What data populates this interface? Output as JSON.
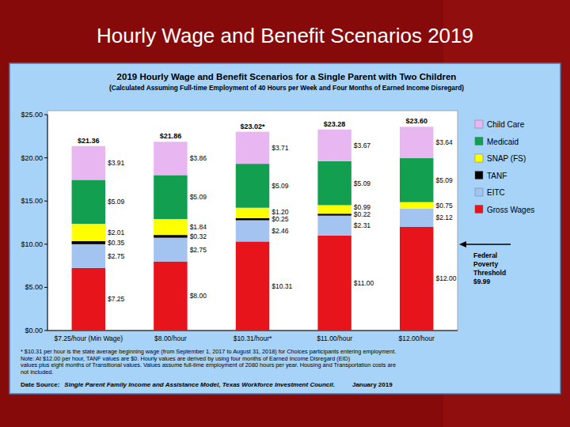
{
  "chart_data": {
    "type": "bar",
    "stacked": true,
    "data_labels": true,
    "grid": false,
    "legend": "right",
    "slide_title": "Hourly Wage and Benefit Scenarios 2019",
    "title": "2019 Hourly Wage and Benefit Scenarios for a Single Parent with Two Children",
    "subtitle": "(Calculated Assuming Full-time Employment of 40 Hours per Week and Four Months of Earned Income Disregard)",
    "categories": [
      "$7.25/hour (Min Wage)",
      "$8.00/hour",
      "$10.31/hour*",
      "$11.00/hour",
      "$12.00/hour"
    ],
    "ylim": [
      0,
      25
    ],
    "yticks": [
      {
        "value": 0,
        "label": "$0.00"
      },
      {
        "value": 5,
        "label": "$5.00"
      },
      {
        "value": 10,
        "label": "$10.00"
      },
      {
        "value": 15,
        "label": "$15.00"
      },
      {
        "value": 20,
        "label": "$20.00"
      },
      {
        "value": 25,
        "label": "$25.00"
      }
    ],
    "series": [
      {
        "name": "Gross Wages",
        "color": "#e8141c",
        "values": [
          7.25,
          8.0,
          10.31,
          11.0,
          12.0
        ],
        "value_labels": [
          "$7.25",
          "$8.00",
          "$10.31",
          "$11.00",
          "$12.00"
        ]
      },
      {
        "name": "EITC",
        "color": "#a3c4f0",
        "values": [
          2.75,
          2.75,
          2.46,
          2.31,
          2.12
        ],
        "value_labels": [
          "$2.75",
          "$2.75",
          "$2.46",
          "$2.31",
          "$2.12"
        ]
      },
      {
        "name": "TANF",
        "color": "#000000",
        "values": [
          0.35,
          0.32,
          0.25,
          0.22,
          0
        ],
        "value_labels": [
          "$0.35",
          "$0.32",
          "$0.25",
          "$0.22",
          null
        ]
      },
      {
        "name": "SNAP (FS)",
        "color": "#ffff00",
        "values": [
          2.01,
          1.84,
          1.2,
          0.99,
          0.75
        ],
        "value_labels": [
          "$2.01",
          "$1.84",
          "$1.20",
          "$0.99",
          "$0.75"
        ]
      },
      {
        "name": "Medicaid",
        "color": "#12a050",
        "values": [
          5.09,
          5.09,
          5.09,
          5.09,
          5.09
        ],
        "value_labels": [
          "$5.09",
          "$5.09",
          "$5.09",
          "$5.09",
          "$5.09"
        ]
      },
      {
        "name": "Child Care",
        "color": "#e8b6f0",
        "values": [
          3.91,
          3.86,
          3.71,
          3.67,
          3.64
        ],
        "value_labels": [
          "$3.91",
          "$3.86",
          "$3.71",
          "$3.67",
          "$3.64"
        ]
      }
    ],
    "totals": [
      21.36,
      21.86,
      23.02,
      23.28,
      23.6
    ],
    "total_labels": [
      "$21.36",
      "$21.86",
      "$23.02*",
      "$23.28",
      "$23.60"
    ],
    "threshold": {
      "text": "Federal Poverty Threshold",
      "value": 9.99,
      "label": "$9.99"
    },
    "notes": [
      "* $10.31 per hour is the state average beginning wage (from September 1, 2017 to August 31, 2018) for Choices participants entering employment.",
      "Note: At $12.00 per hour, TANF values are $0.  Hourly values are derived by using four months of Earned Income Disregard (EID)",
      "values plus eight months of Transitional values.  Values assume full-time employment of 2080 hours per year.  Housing and Transportation costs are",
      "not included."
    ],
    "source": {
      "label": "Date Source:",
      "text": "Single Parent Family Income and Assistance Model, Texas Workforce Investment Council.",
      "date": "January 2019"
    }
  }
}
